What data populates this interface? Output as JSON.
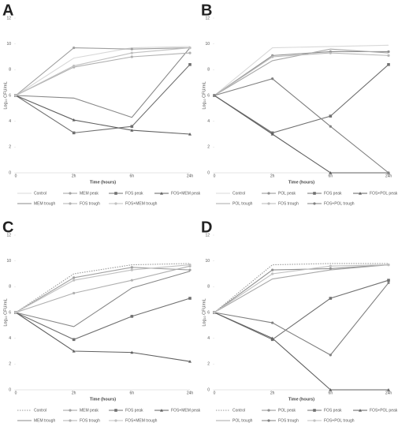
{
  "chart_data": [
    {
      "type": "line",
      "panel": "A",
      "y_label": "Log₁₀ CFU/mL",
      "x_label": "Time (hours)",
      "categories": [
        "0",
        "2h",
        "6h",
        "24h"
      ],
      "ylim": [
        0,
        12
      ],
      "yticks": [
        0,
        2,
        4,
        6,
        8,
        10,
        12
      ],
      "series": [
        {
          "name": "Control",
          "color": "#d8d8d8",
          "marker": "none",
          "values": [
            6,
            8.9,
            9.7,
            9.8
          ]
        },
        {
          "name": "MEM peak",
          "color": "#a0a0a0",
          "marker": "circle",
          "values": [
            6,
            9.7,
            9.6,
            9.7
          ]
        },
        {
          "name": "FOS peak",
          "color": "#707070",
          "marker": "square",
          "values": [
            6,
            3.1,
            3.6,
            8.4
          ]
        },
        {
          "name": "FOS+MEM peak",
          "color": "#606060",
          "marker": "triangle",
          "values": [
            6,
            4.1,
            3.3,
            3.0
          ]
        },
        {
          "name": "MEM trough",
          "color": "#888888",
          "marker": "none",
          "values": [
            6,
            5.8,
            4.3,
            9.7
          ]
        },
        {
          "name": "FOS trough",
          "color": "#b0b0b0",
          "marker": "circle",
          "values": [
            6,
            8.2,
            9.0,
            9.3
          ]
        },
        {
          "name": "FOS+MEM trough",
          "color": "#c0c0c0",
          "marker": "circle",
          "values": [
            6,
            8.3,
            9.3,
            9.7
          ]
        }
      ]
    },
    {
      "type": "line",
      "panel": "B",
      "y_label": "Log₁₀ CFU/mL",
      "x_label": "Time (hours)",
      "categories": [
        "0",
        "2h",
        "6h",
        "24h"
      ],
      "ylim": [
        0,
        12
      ],
      "yticks": [
        0,
        2,
        4,
        6,
        8,
        10,
        12
      ],
      "series": [
        {
          "name": "Control",
          "color": "#d8d8d8",
          "marker": "none",
          "values": [
            6,
            9.7,
            9.8,
            9.9
          ]
        },
        {
          "name": "POL peak",
          "color": "#909090",
          "marker": "circle",
          "values": [
            6,
            9.1,
            9.4,
            9.4
          ]
        },
        {
          "name": "FOS peak",
          "color": "#707070",
          "marker": "square",
          "values": [
            6,
            3.1,
            4.4,
            8.4
          ]
        },
        {
          "name": "FOS+POL peak",
          "color": "#606060",
          "marker": "triangle",
          "values": [
            6,
            3.0,
            0,
            0
          ]
        },
        {
          "name": "POL trough",
          "color": "#a8a8a8",
          "marker": "none",
          "values": [
            6,
            8.7,
            9.6,
            9.3
          ]
        },
        {
          "name": "FOS trough",
          "color": "#b8b8b8",
          "marker": "circle",
          "values": [
            6,
            9.0,
            9.3,
            9.1
          ]
        },
        {
          "name": "FOS+POL trough",
          "color": "#808080",
          "marker": "circle",
          "values": [
            6,
            7.3,
            3.6,
            0
          ]
        }
      ]
    },
    {
      "type": "line",
      "panel": "C",
      "y_label": "Log₁₀ CFU/mL",
      "x_label": "Time (hours)",
      "categories": [
        "0",
        "2h",
        "6h",
        "24h"
      ],
      "ylim": [
        0,
        12
      ],
      "yticks": [
        0,
        2,
        4,
        6,
        8,
        10,
        12
      ],
      "series": [
        {
          "name": "Control",
          "color": "#999999",
          "marker": "none",
          "dash": "dotted",
          "values": [
            6,
            9.0,
            9.7,
            9.8
          ]
        },
        {
          "name": "MEM peak",
          "color": "#a0a0a0",
          "marker": "circle",
          "values": [
            6,
            8.7,
            9.5,
            9.3
          ]
        },
        {
          "name": "FOS peak",
          "color": "#707070",
          "marker": "square",
          "values": [
            6,
            3.9,
            5.7,
            7.1
          ]
        },
        {
          "name": "FOS+MEM peak",
          "color": "#606060",
          "marker": "triangle",
          "values": [
            6,
            3.0,
            2.9,
            2.2
          ]
        },
        {
          "name": "MEM trough",
          "color": "#888888",
          "marker": "none",
          "values": [
            6,
            4.9,
            7.9,
            9.2
          ]
        },
        {
          "name": "FOS trough",
          "color": "#b0b0b0",
          "marker": "circle",
          "values": [
            6,
            7.5,
            8.5,
            9.6
          ]
        },
        {
          "name": "FOS+MEM trough",
          "color": "#c0c0c0",
          "marker": "circle",
          "values": [
            6,
            8.5,
            9.3,
            9.7
          ]
        }
      ]
    },
    {
      "type": "line",
      "panel": "D",
      "y_label": "Log₁₀ CFU/mL",
      "x_label": "Time (hours)",
      "categories": [
        "0",
        "2h",
        "6h",
        "24h"
      ],
      "ylim": [
        0,
        12
      ],
      "yticks": [
        0,
        2,
        4,
        6,
        8,
        10,
        12
      ],
      "series": [
        {
          "name": "Control",
          "color": "#999999",
          "marker": "none",
          "dash": "dotted",
          "values": [
            6,
            9.7,
            9.8,
            9.8
          ]
        },
        {
          "name": "POL peak",
          "color": "#909090",
          "marker": "circle",
          "values": [
            6,
            9.3,
            9.4,
            9.7
          ]
        },
        {
          "name": "FOS peak",
          "color": "#707070",
          "marker": "square",
          "values": [
            6,
            3.9,
            7.1,
            8.5
          ]
        },
        {
          "name": "FOS+POL peak",
          "color": "#606060",
          "marker": "triangle",
          "values": [
            6,
            4.0,
            0,
            0
          ]
        },
        {
          "name": "POL trough",
          "color": "#a8a8a8",
          "marker": "none",
          "values": [
            6,
            8.6,
            9.3,
            9.7
          ]
        },
        {
          "name": "FOS trough",
          "color": "#808080",
          "marker": "circle",
          "values": [
            6,
            5.2,
            2.7,
            8.3
          ]
        },
        {
          "name": "FOS+POL trough",
          "color": "#c0c0c0",
          "marker": "circle",
          "values": [
            6,
            9.0,
            9.6,
            9.7
          ]
        }
      ]
    }
  ]
}
